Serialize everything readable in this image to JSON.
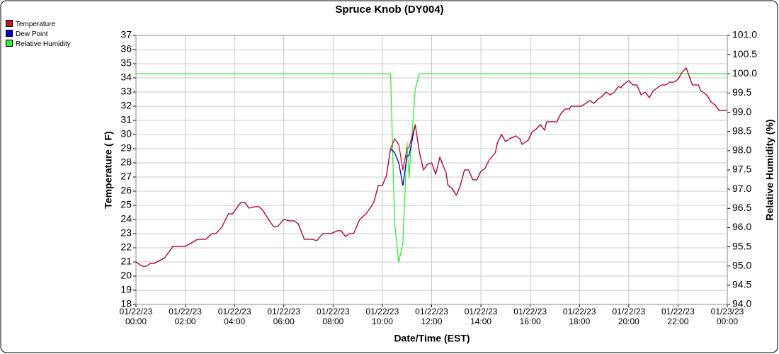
{
  "chart_data": {
    "type": "line",
    "title": "Spruce Knob (DY004)",
    "x_label": "Date/Time (EST)",
    "y_label": "Temperature ( F)",
    "y2_label": "Relative Humidity (%)",
    "x": [
      "01/22/23 00:00",
      "01/22/23 00:15",
      "01/22/23 00:25",
      "01/22/23 00:35",
      "01/22/23 00:45",
      "01/22/23 01:10",
      "01/22/23 01:30",
      "01/22/23 02:00",
      "01/22/23 02:30",
      "01/22/23 02:50",
      "01/22/23 03:05",
      "01/22/23 03:15",
      "01/22/23 03:30",
      "01/22/23 03:45",
      "01/22/23 03:55",
      "01/22/23 04:15",
      "01/22/23 04:25",
      "01/22/23 04:35",
      "01/22/23 04:50",
      "01/22/23 05:00",
      "01/22/23 05:10",
      "01/22/23 05:25",
      "01/22/23 05:35",
      "01/22/23 05:45",
      "01/22/23 06:00",
      "01/22/23 06:15",
      "01/22/23 06:25",
      "01/22/23 06:35",
      "01/22/23 06:50",
      "01/22/23 07:10",
      "01/22/23 07:20",
      "01/22/23 07:35",
      "01/22/23 07:55",
      "01/22/23 08:10",
      "01/22/23 08:20",
      "01/22/23 08:30",
      "01/22/23 08:40",
      "01/22/23 08:50",
      "01/22/23 09:05",
      "01/22/23 09:20",
      "01/22/23 09:35",
      "01/22/23 09:40",
      "01/22/23 09:50",
      "01/22/23 10:00",
      "01/22/23 10:10",
      "01/22/23 10:20",
      "01/22/23 10:30",
      "01/22/23 10:40",
      "01/22/23 10:50",
      "01/22/23 11:00",
      "01/22/23 11:05",
      "01/22/23 11:20",
      "01/22/23 11:30",
      "01/22/23 11:40",
      "01/22/23 11:50",
      "01/22/23 12:00",
      "01/22/23 12:10",
      "01/22/23 12:20",
      "01/22/23 12:35",
      "01/22/23 12:40",
      "01/22/23 12:50",
      "01/22/23 13:00",
      "01/22/23 13:10",
      "01/22/23 13:20",
      "01/22/23 13:30",
      "01/22/23 13:40",
      "01/22/23 13:50",
      "01/22/23 14:00",
      "01/22/23 14:10",
      "01/22/23 14:20",
      "01/22/23 14:35",
      "01/22/23 14:40",
      "01/22/23 14:50",
      "01/22/23 15:00",
      "01/22/23 15:10",
      "01/22/23 15:25",
      "01/22/23 15:35",
      "01/22/23 15:40",
      "01/22/23 15:55",
      "01/22/23 16:05",
      "01/22/23 16:15",
      "01/22/23 16:25",
      "01/22/23 16:35",
      "01/22/23 16:40",
      "01/22/23 17:05",
      "01/22/23 17:15",
      "01/22/23 17:25",
      "01/22/23 17:35",
      "01/22/23 17:40",
      "01/22/23 18:05",
      "01/22/23 18:15",
      "01/22/23 18:25",
      "01/22/23 18:35",
      "01/22/23 18:45",
      "01/22/23 18:55",
      "01/22/23 19:05",
      "01/22/23 19:15",
      "01/22/23 19:25",
      "01/22/23 19:35",
      "01/22/23 19:40",
      "01/22/23 19:50",
      "01/22/23 20:00",
      "01/22/23 20:10",
      "01/22/23 20:20",
      "01/22/23 20:30",
      "01/22/23 20:40",
      "01/22/23 20:50",
      "01/22/23 21:00",
      "01/22/23 21:10",
      "01/22/23 21:20",
      "01/22/23 21:30",
      "01/22/23 21:40",
      "01/22/23 21:50",
      "01/22/23 22:00",
      "01/22/23 22:10",
      "01/22/23 22:20",
      "01/22/23 22:25",
      "01/22/23 22:35",
      "01/22/23 22:50",
      "01/22/23 22:55",
      "01/22/23 23:10",
      "01/22/23 23:20",
      "01/22/23 23:30",
      "01/22/23 23:40",
      "01/23/23 00:00"
    ],
    "series": [
      {
        "name": "Relative Humidity",
        "color": "#33ee33",
        "axis": "y2",
        "values": [
          100,
          100,
          100,
          100,
          100,
          100,
          100,
          100,
          100,
          100,
          100,
          100,
          100,
          100,
          100,
          100,
          100,
          100,
          100,
          100,
          100,
          100,
          100,
          100,
          100,
          100,
          100,
          100,
          100,
          100,
          100,
          100,
          100,
          100,
          100,
          100,
          100,
          100,
          100,
          100,
          100,
          100,
          100,
          100,
          100,
          100,
          96.1,
          95.1,
          95.6,
          98.2,
          97.3,
          99.6,
          100,
          100,
          100,
          100,
          100,
          100,
          100,
          100,
          100,
          100,
          100,
          100,
          100,
          100,
          100,
          100,
          100,
          100,
          100,
          100,
          100,
          100,
          100,
          100,
          100,
          100,
          100,
          100,
          100,
          100,
          100,
          100,
          100,
          100,
          100,
          100,
          100,
          100,
          100,
          100,
          100,
          100,
          100,
          100,
          100,
          100,
          100,
          100,
          100,
          100,
          100,
          100,
          100,
          100,
          100,
          100,
          100,
          100,
          100,
          100,
          100,
          100,
          100,
          100,
          100,
          100,
          100,
          100,
          100,
          100,
          100,
          100,
          100
        ]
      },
      {
        "name": "Dew Point",
        "color": "#0000cc",
        "values": [
          21.0,
          20.7,
          20.7,
          20.9,
          20.9,
          21.3,
          22.1,
          22.1,
          22.6,
          22.6,
          23.0,
          23.0,
          23.5,
          24.4,
          24.4,
          25.2,
          25.2,
          24.8,
          24.9,
          24.9,
          24.6,
          23.9,
          23.5,
          23.5,
          24.0,
          23.9,
          23.9,
          23.7,
          22.6,
          22.6,
          22.5,
          23.0,
          23.0,
          23.2,
          23.2,
          22.8,
          23.0,
          23.0,
          24.0,
          24.4,
          25.0,
          25.3,
          26.4,
          26.4,
          27.1,
          29.0,
          28.7,
          28.0,
          26.4,
          28.5,
          28.5,
          30.7,
          28.8,
          27.5,
          27.9,
          28.0,
          27.2,
          28.4,
          27.3,
          26.4,
          26.2,
          25.7,
          26.4,
          27.5,
          27.5,
          26.8,
          26.8,
          27.4,
          27.6,
          28.2,
          28.7,
          29.4,
          30.0,
          29.5,
          29.7,
          29.9,
          29.7,
          29.3,
          29.6,
          30.2,
          30.4,
          30.7,
          30.3,
          30.9,
          30.9,
          31.5,
          31.8,
          31.8,
          32.0,
          32.0,
          32.2,
          32.4,
          32.2,
          32.5,
          32.7,
          33.0,
          32.8,
          33.0,
          33.4,
          33.3,
          33.6,
          33.8,
          33.5,
          33.5,
          32.8,
          33.0,
          32.6,
          33.1,
          33.3,
          33.5,
          33.5,
          33.7,
          33.7,
          33.9,
          34.4,
          34.7,
          34.3,
          33.5,
          33.5,
          33.1,
          32.8,
          32.3,
          32.1,
          31.7,
          31.7
        ]
      },
      {
        "name": "Temperature",
        "color": "#cc1030",
        "values": [
          21.0,
          20.7,
          20.7,
          20.9,
          20.9,
          21.3,
          22.1,
          22.1,
          22.6,
          22.6,
          23.0,
          23.0,
          23.5,
          24.4,
          24.4,
          25.2,
          25.2,
          24.8,
          24.9,
          24.9,
          24.6,
          23.9,
          23.5,
          23.5,
          24.0,
          23.9,
          23.9,
          23.7,
          22.6,
          22.6,
          22.5,
          23.0,
          23.0,
          23.2,
          23.2,
          22.8,
          23.0,
          23.0,
          24.0,
          24.4,
          25.0,
          25.3,
          26.4,
          26.4,
          27.1,
          29.0,
          29.7,
          29.3,
          27.5,
          29.0,
          29.1,
          30.7,
          28.8,
          27.5,
          27.9,
          28.0,
          27.2,
          28.4,
          27.3,
          26.4,
          26.2,
          25.7,
          26.4,
          27.5,
          27.5,
          26.8,
          26.8,
          27.4,
          27.6,
          28.2,
          28.7,
          29.4,
          30.0,
          29.5,
          29.7,
          29.9,
          29.7,
          29.3,
          29.6,
          30.2,
          30.4,
          30.7,
          30.3,
          30.9,
          30.9,
          31.5,
          31.8,
          31.8,
          32.0,
          32.0,
          32.2,
          32.4,
          32.2,
          32.5,
          32.7,
          33.0,
          32.8,
          33.0,
          33.4,
          33.3,
          33.6,
          33.8,
          33.5,
          33.5,
          32.8,
          33.0,
          32.6,
          33.1,
          33.3,
          33.5,
          33.5,
          33.7,
          33.7,
          33.9,
          34.4,
          34.7,
          34.3,
          33.5,
          33.5,
          33.1,
          32.8,
          32.3,
          32.1,
          31.7,
          31.7
        ]
      }
    ],
    "legend_order": [
      "Temperature",
      "Dew Point",
      "Relative Humidity"
    ],
    "legend": "top-left",
    "xlim": [
      "01/22/23 00:00",
      "01/23/23 00:00"
    ],
    "xticks": [
      "01/22/23 00:00",
      "01/22/23 02:00",
      "01/22/23 04:00",
      "01/22/23 06:00",
      "01/22/23 08:00",
      "01/22/23 10:00",
      "01/22/23 12:00",
      "01/22/23 14:00",
      "01/22/23 16:00",
      "01/22/23 18:00",
      "01/22/23 20:00",
      "01/22/23 22:00",
      "01/23/23 00:00"
    ],
    "ylim": [
      18,
      37
    ],
    "yticks": [
      18,
      19,
      20,
      21,
      22,
      23,
      24,
      25,
      26,
      27,
      28,
      29,
      30,
      31,
      32,
      33,
      34,
      35,
      36,
      37
    ],
    "y2lim": [
      94,
      101
    ],
    "y2ticks": [
      {
        "value": 94,
        "label": "94.0"
      },
      94.5,
      {
        "value": 95,
        "label": "95.0"
      },
      95.5,
      {
        "value": 96,
        "label": "96.0"
      },
      96.5,
      {
        "value": 97,
        "label": "97.0"
      },
      97.5,
      {
        "value": 98,
        "label": "98.0"
      },
      98.5,
      {
        "value": 99,
        "label": "99.0"
      },
      99.5,
      {
        "value": 100,
        "label": "100.0"
      },
      100.5,
      {
        "value": 101,
        "label": "101.0"
      }
    ],
    "grid": true
  }
}
